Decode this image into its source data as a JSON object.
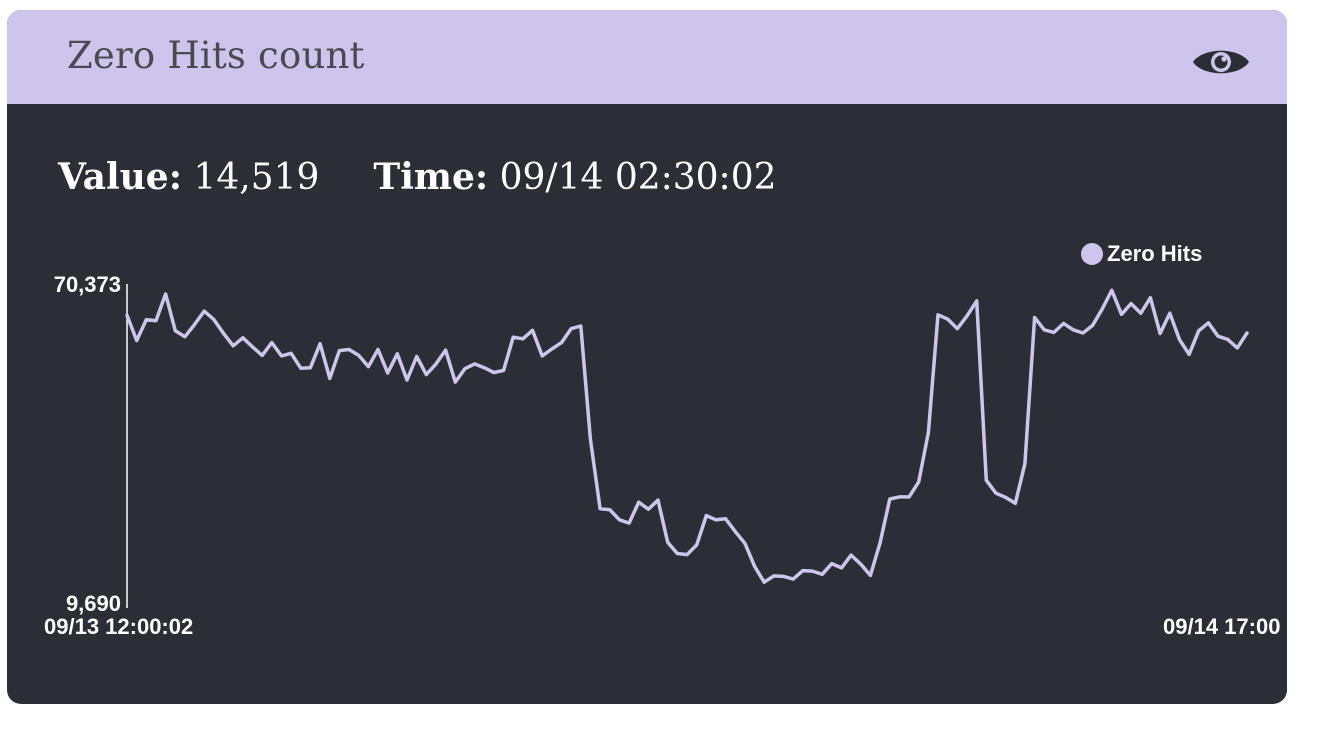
{
  "widget": {
    "title": "Zero Hits count",
    "view_icon": "eye-icon",
    "header_color": "#cdc5ec",
    "body_color": "#2b2e35"
  },
  "readout": {
    "value_label": "Value:",
    "value": "14,519",
    "time_label": "Time:",
    "time": "09/14 02:30:02"
  },
  "chart_data": {
    "type": "line",
    "title": "",
    "xlabel": "",
    "ylabel": "",
    "x_start_label": "09/13 12:00:02",
    "x_end_label": "09/14 17:00",
    "y_max_label": "70,373",
    "y_min_label": "9,690",
    "ylim": [
      9690,
      70373
    ],
    "legend": "top-right",
    "series": [
      {
        "name": "Zero Hits",
        "color": "#cdc5ec",
        "values": [
          64500,
          59800,
          63700,
          63500,
          68500,
          61600,
          60500,
          62800,
          65300,
          63700,
          61100,
          58800,
          60300,
          58600,
          57000,
          59400,
          56900,
          57400,
          54600,
          54700,
          59200,
          52700,
          57900,
          58100,
          57000,
          54900,
          58100,
          53700,
          57300,
          52400,
          56800,
          53400,
          55400,
          58000,
          52000,
          54500,
          55400,
          54700,
          53800,
          54200,
          60400,
          60100,
          61700,
          56900,
          58200,
          59400,
          62000,
          62500,
          41300,
          28300,
          28100,
          26200,
          25600,
          29500,
          28200,
          29900,
          22000,
          19900,
          19700,
          21500,
          27000,
          26200,
          26400,
          24000,
          21800,
          17500,
          14519,
          15700,
          15600,
          15100,
          16700,
          16600,
          16000,
          18000,
          17200,
          19600,
          17900,
          15800,
          21900,
          30100,
          30500,
          30500,
          33300,
          42600,
          64600,
          63800,
          62000,
          64400,
          67200,
          33600,
          31200,
          30400,
          29300,
          36700,
          64100,
          61800,
          61300,
          63000,
          61800,
          61200,
          62600,
          65700,
          69200,
          64700,
          66700,
          64900,
          67800,
          61100,
          64900,
          60000,
          57200,
          61600,
          63100,
          60600,
          60000,
          58400,
          61200
        ]
      }
    ]
  }
}
